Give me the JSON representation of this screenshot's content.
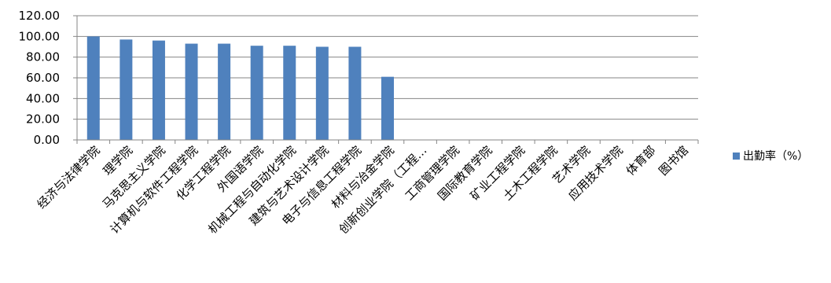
{
  "chart_data": {
    "type": "bar",
    "title": "",
    "xlabel": "",
    "ylabel": "",
    "ylim": [
      0,
      120
    ],
    "y_ticks": [
      "0.00",
      "20.00",
      "40.00",
      "60.00",
      "80.00",
      "100.00",
      "120.00"
    ],
    "y_tick_values": [
      0,
      20,
      40,
      60,
      80,
      100,
      120
    ],
    "grid": "horizontal",
    "legend_position": "right",
    "categories": [
      "经济与法律学院",
      "理学院",
      "马克思主义学院",
      "计算机与软件工程学院",
      "化学工程学院",
      "外国语学院",
      "机械工程与自动化学院",
      "建筑与艺术设计学院",
      "电子与信息工程学院",
      "材料与冶金学院",
      "创新创业学院（工程…",
      "工商管理学院",
      "国际教育学院",
      "矿业工程学院",
      "土木工程学院",
      "艺术学院",
      "应用技术学院",
      "体育部",
      "图书馆"
    ],
    "series": [
      {
        "name": "出勤率（%）",
        "color": "#4f81bd",
        "values": [
          100,
          97,
          96,
          93,
          93,
          91,
          91,
          90,
          90,
          61,
          0,
          0,
          0,
          0,
          0,
          0,
          0,
          0,
          0
        ]
      }
    ]
  }
}
